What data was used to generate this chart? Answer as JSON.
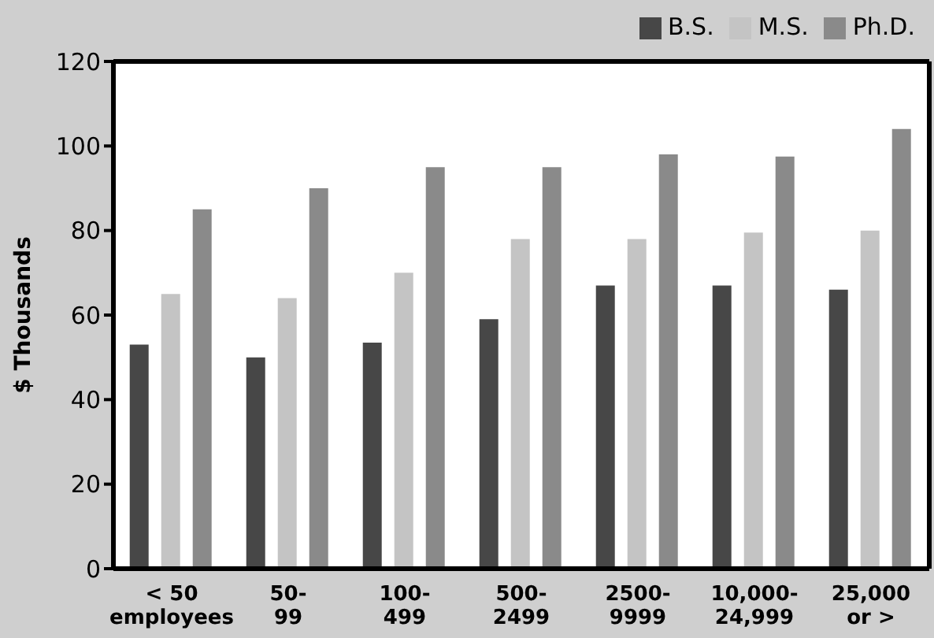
{
  "chart_data": {
    "type": "bar",
    "ylabel": "$ Thousands",
    "categories": [
      "< 50\nemployees",
      "50-\n99",
      "100-\n499",
      "500-\n2499",
      "2500-\n9999",
      "10,000-\n24,999",
      "25,000\nor >"
    ],
    "series": [
      {
        "name": "B.S.",
        "color": "#474747",
        "values": [
          53,
          50,
          53.5,
          59,
          67,
          67,
          66
        ]
      },
      {
        "name": "M.S.",
        "color": "#c4c4c4",
        "values": [
          65,
          64,
          70,
          78,
          78,
          79.5,
          80
        ]
      },
      {
        "name": "Ph.D.",
        "color": "#8a8a8a",
        "values": [
          85,
          90,
          95,
          95,
          98,
          97.5,
          104
        ]
      }
    ],
    "ylim": [
      0,
      120
    ],
    "yticks": [
      0,
      20,
      40,
      60,
      80,
      100,
      120
    ],
    "legend": "top right"
  }
}
